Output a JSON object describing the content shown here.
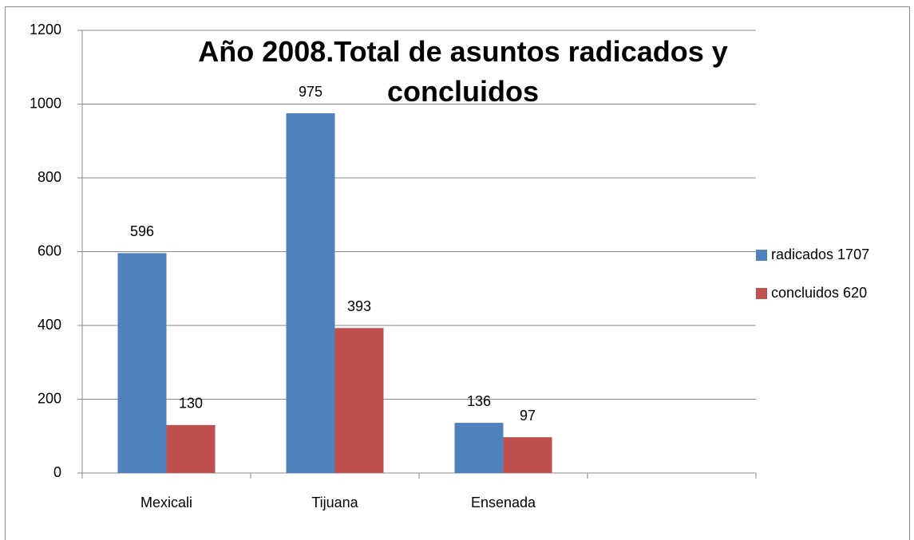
{
  "chart_data": {
    "type": "bar",
    "title": "Año 2008.Total de asuntos radicados y concluidos",
    "categories": [
      "Mexicali",
      "Tijuana",
      "Ensenada",
      null
    ],
    "series": [
      {
        "name": "radicados 1707",
        "color": "#4f81bd",
        "values": [
          596,
          975,
          136,
          null
        ]
      },
      {
        "name": "concluidos 620",
        "color": "#c0504d",
        "values": [
          130,
          393,
          97,
          null
        ]
      }
    ],
    "ylim": [
      0,
      1200
    ],
    "yticks": [
      0,
      200,
      400,
      600,
      800,
      1000,
      1200
    ],
    "grid": true,
    "legend": "right"
  }
}
